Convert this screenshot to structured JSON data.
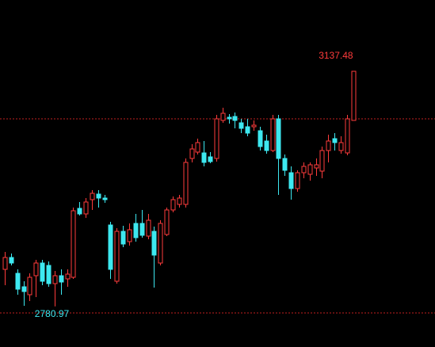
{
  "chart_data": {
    "type": "candlestick",
    "open": [
      2837,
      2855,
      2831,
      2810.6,
      2798.6,
      2827.4,
      2846.6,
      2843,
      2815.4,
      2827.4,
      2822.6,
      2825,
      2929.4,
      2921,
      2942.6,
      2951,
      2945,
      2904.2,
      2819,
      2894.6,
      2879,
      2906.6,
      2906.6,
      2887.4,
      2894.6,
      2846.6,
      2889.8,
      2927,
      2935.4,
      2935.4,
      3005,
      3014.6,
      3013.4,
      3007.4,
      3005,
      3062.6,
      3067.4,
      3068.6,
      3059,
      3053,
      3053,
      3047,
      3031.4,
      3017,
      3065,
      3005,
      2983.4,
      2959.4,
      2983.4,
      2981,
      2990.6,
      2985.8,
      3017,
      3035,
      3017,
      3013.4,
      3062.6
    ],
    "high": [
      2863.4,
      2861,
      2837,
      2819,
      2831,
      2851.4,
      2851.4,
      2849,
      2834.6,
      2837,
      2837,
      2930.6,
      2939,
      2945,
      2957,
      2957,
      2949.8,
      2909,
      2899.4,
      2903,
      2906.6,
      2921,
      2927,
      2921,
      2901.8,
      2911.4,
      2930.6,
      2947.4,
      2949.8,
      3005,
      3026.6,
      3035,
      3031.4,
      3014.6,
      3071,
      3081.8,
      3072.2,
      3074.6,
      3065,
      3065,
      3062.6,
      3053,
      3041,
      3071,
      3071,
      3011,
      2993,
      2987,
      2999,
      2999,
      3005,
      3023,
      3041,
      3043.4,
      3038.6,
      3071,
      3137.48
    ],
    "low": [
      2813,
      2843,
      2798.6,
      2781.8,
      2789,
      2795,
      2813,
      2810.6,
      2780.97,
      2798.6,
      2810.6,
      2822.6,
      2918.6,
      2915,
      2927,
      2930.6,
      2937.8,
      2822.6,
      2815.4,
      2870.6,
      2873,
      2879,
      2885,
      2882.6,
      2809.4,
      2843,
      2887.4,
      2923.4,
      2930.6,
      2930.6,
      2999,
      3011,
      2993,
      2997.8,
      3000.2,
      3059,
      3057.8,
      3050.6,
      3043.4,
      3038.6,
      3047,
      3017,
      3012.2,
      3014.6,
      2949.8,
      2978.6,
      2942.6,
      2954.6,
      2975,
      2971.4,
      2978.6,
      2975,
      2999,
      3017,
      3012.2,
      3009.8,
      3065
    ],
    "close": [
      2855,
      2846.6,
      2807,
      2803.4,
      2825,
      2846.6,
      2819,
      2815.4,
      2827.4,
      2817.8,
      2829.8,
      2925.8,
      2921,
      2939,
      2952.2,
      2945,
      2942.6,
      2837,
      2894.6,
      2875.4,
      2897,
      2885,
      2888.6,
      2911.4,
      2858.6,
      2906.6,
      2927,
      2942.6,
      2945,
      2999,
      3019.4,
      3029,
      2999,
      3000.2,
      3065,
      3073.4,
      3065,
      3062.6,
      3050.6,
      3043.4,
      3055.4,
      3023,
      3017,
      3065,
      3005,
      2987,
      2959.4,
      2983.4,
      2993,
      2995.4,
      2995.4,
      3017,
      3031.4,
      3029,
      3029,
      3065,
      3137
    ],
    "up_color": "#ff3b3b",
    "down_color": "#3de8f0",
    "ylim": [
      2719.4,
      3245
    ],
    "reference_lines": [
      3065,
      2771
    ]
  }
}
